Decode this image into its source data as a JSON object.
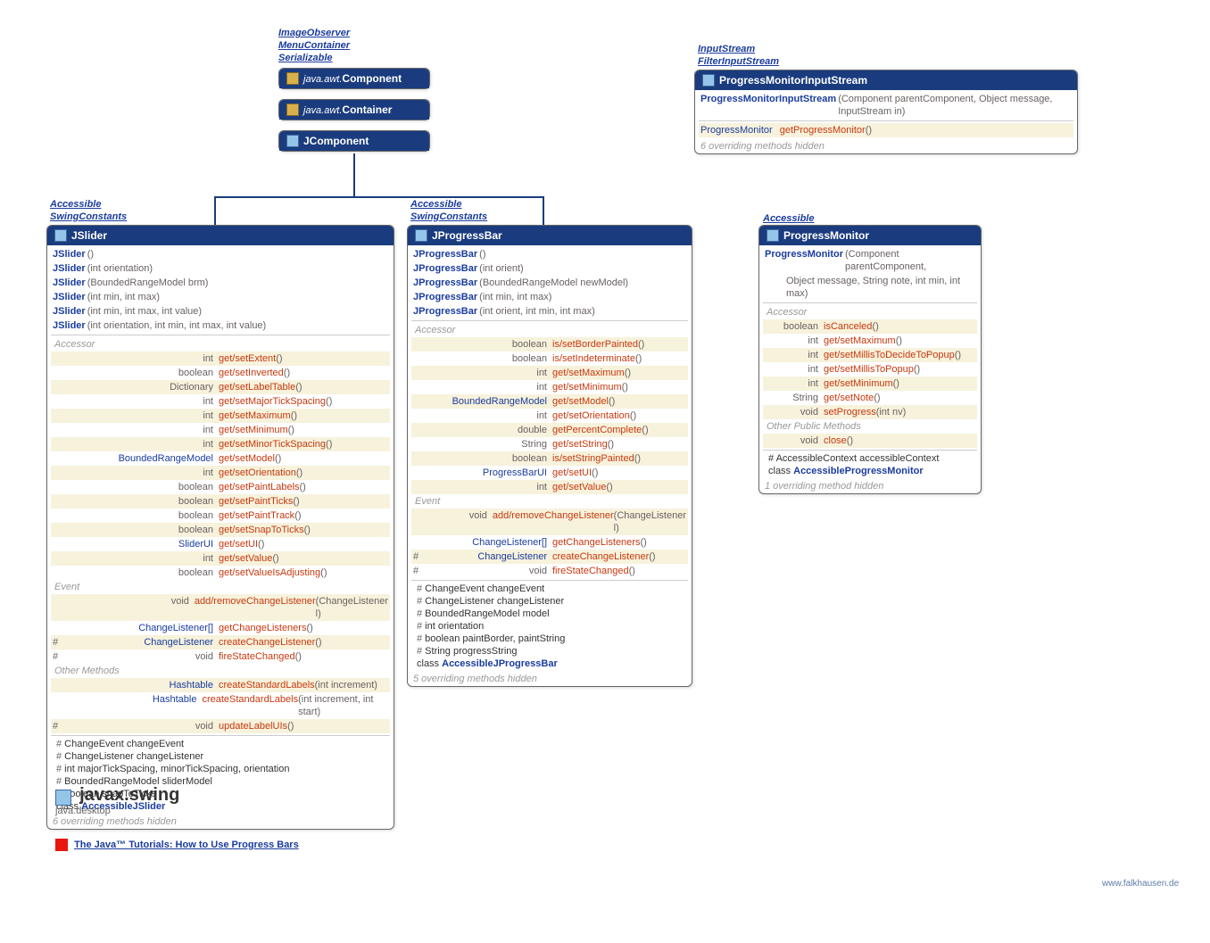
{
  "colors": {
    "header_bg": "#1a3c7e",
    "method": "#c8380e",
    "type": "#1a3c9e",
    "param": "#6a6262",
    "shade": "#f7f2dc"
  },
  "top_interfaces": [
    "ImageObserver",
    "MenuContainer",
    "Serializable"
  ],
  "hierarchy": [
    {
      "pkg": "java.awt.",
      "name": "Component"
    },
    {
      "pkg": "java.awt.",
      "name": "Container"
    },
    {
      "pkg": "",
      "name": "JComponent"
    }
  ],
  "jslider": {
    "interfaces": [
      "Accessible",
      "SwingConstants"
    ],
    "title": "JSlider",
    "ctors": [
      {
        "name": "JSlider",
        "params": "()"
      },
      {
        "name": "JSlider",
        "params": "(int orientation)"
      },
      {
        "name": "JSlider",
        "params": "(BoundedRangeModel brm)"
      },
      {
        "name": "JSlider",
        "params": "(int min, int max)"
      },
      {
        "name": "JSlider",
        "params": "(int min, int max, int value)"
      },
      {
        "name": "JSlider",
        "params": "(int orientation, int min, int max, int value)"
      }
    ],
    "accessor_label": "Accessor",
    "accessors": [
      {
        "ret": "int",
        "name": "get/setExtent",
        "p": "()"
      },
      {
        "ret": "boolean",
        "name": "get/setInverted",
        "p": "()"
      },
      {
        "ret": "Dictionary",
        "name": "get/setLabelTable",
        "p": "()"
      },
      {
        "ret": "int",
        "name": "get/setMajorTickSpacing",
        "p": "()"
      },
      {
        "ret": "int",
        "name": "get/setMaximum",
        "p": "()"
      },
      {
        "ret": "int",
        "name": "get/setMinimum",
        "p": "()"
      },
      {
        "ret": "int",
        "name": "get/setMinorTickSpacing",
        "p": "()"
      },
      {
        "ret": "BoundedRangeModel",
        "name": "get/setModel",
        "p": "()",
        "retblue": true
      },
      {
        "ret": "int",
        "name": "get/setOrientation",
        "p": "()"
      },
      {
        "ret": "boolean",
        "name": "get/setPaintLabels",
        "p": "()"
      },
      {
        "ret": "boolean",
        "name": "get/setPaintTicks",
        "p": "()"
      },
      {
        "ret": "boolean",
        "name": "get/setPaintTrack",
        "p": "()"
      },
      {
        "ret": "boolean",
        "name": "get/setSnapToTicks",
        "p": "()"
      },
      {
        "ret": "SliderUI",
        "name": "get/setUI",
        "p": "()",
        "retblue": true
      },
      {
        "ret": "int",
        "name": "get/setValue",
        "p": "()"
      },
      {
        "ret": "boolean",
        "name": "get/setValueIsAdjusting",
        "p": "()"
      }
    ],
    "event_label": "Event",
    "events": [
      {
        "mod": "",
        "ret": "void",
        "name": "add/removeChangeListener",
        "p": "(ChangeListener l)"
      },
      {
        "mod": "",
        "ret": "ChangeListener[]",
        "name": "getChangeListeners",
        "p": "()",
        "retblue": true
      },
      {
        "mod": "#",
        "ret": "ChangeListener",
        "name": "createChangeListener",
        "p": "()",
        "retblue": true
      },
      {
        "mod": "#",
        "ret": "void",
        "name": "fireStateChanged",
        "p": "()"
      }
    ],
    "other_label": "Other Methods",
    "others": [
      {
        "mod": "",
        "ret": "Hashtable<Integer, JComponent>",
        "name": "createStandardLabels",
        "p": "(int increment)",
        "retblue": true
      },
      {
        "mod": "",
        "ret": "Hashtable<Integer, JComponent>",
        "name": "createStandardLabels",
        "p": "(int increment, int start)",
        "retblue": true
      },
      {
        "mod": "#",
        "ret": "void",
        "name": "updateLabelUIs",
        "p": "()"
      }
    ],
    "fields": [
      "# ChangeEvent changeEvent",
      "# ChangeListener changeListener",
      "# int majorTickSpacing, minorTickSpacing, orientation",
      "# BoundedRangeModel sliderModel",
      "# boolean snapToTicks"
    ],
    "inner": "class AccessibleJSlider",
    "footer": "6 overriding methods hidden"
  },
  "jprogressbar": {
    "interfaces": [
      "Accessible",
      "SwingConstants"
    ],
    "title": "JProgressBar",
    "ctors": [
      {
        "name": "JProgressBar",
        "params": "()"
      },
      {
        "name": "JProgressBar",
        "params": "(int orient)"
      },
      {
        "name": "JProgressBar",
        "params": "(BoundedRangeModel newModel)"
      },
      {
        "name": "JProgressBar",
        "params": "(int min, int max)"
      },
      {
        "name": "JProgressBar",
        "params": "(int orient, int min, int max)"
      }
    ],
    "accessor_label": "Accessor",
    "accessors": [
      {
        "ret": "boolean",
        "name": "is/setBorderPainted",
        "p": "()"
      },
      {
        "ret": "boolean",
        "name": "is/setIndeterminate",
        "p": "()"
      },
      {
        "ret": "int",
        "name": "get/setMaximum",
        "p": "()"
      },
      {
        "ret": "int",
        "name": "get/setMinimum",
        "p": "()"
      },
      {
        "ret": "BoundedRangeModel",
        "name": "get/setModel",
        "p": "()",
        "retblue": true
      },
      {
        "ret": "int",
        "name": "get/setOrientation",
        "p": "()"
      },
      {
        "ret": "double",
        "name": "getPercentComplete",
        "p": "()"
      },
      {
        "ret": "String",
        "name": "get/setString",
        "p": "()"
      },
      {
        "ret": "boolean",
        "name": "is/setStringPainted",
        "p": "()"
      },
      {
        "ret": "ProgressBarUI",
        "name": "get/setUI",
        "p": "()",
        "retblue": true
      },
      {
        "ret": "int",
        "name": "get/setValue",
        "p": "()"
      }
    ],
    "event_label": "Event",
    "events": [
      {
        "mod": "",
        "ret": "void",
        "name": "add/removeChangeListener",
        "p": "(ChangeListener l)"
      },
      {
        "mod": "",
        "ret": "ChangeListener[]",
        "name": "getChangeListeners",
        "p": "()",
        "retblue": true
      },
      {
        "mod": "#",
        "ret": "ChangeListener",
        "name": "createChangeListener",
        "p": "()",
        "retblue": true
      },
      {
        "mod": "#",
        "ret": "void",
        "name": "fireStateChanged",
        "p": "()"
      }
    ],
    "fields": [
      "# ChangeEvent changeEvent",
      "# ChangeListener changeListener",
      "# BoundedRangeModel model",
      "# int orientation",
      "# boolean paintBorder, paintString",
      "# String progressString"
    ],
    "inner": "class AccessibleJProgressBar",
    "footer": "5 overriding methods hidden"
  },
  "progressmonitor": {
    "interfaces": [
      "Accessible"
    ],
    "title": "ProgressMonitor",
    "ctor_name": "ProgressMonitor",
    "ctor_line1": "(Component parentComponent,",
    "ctor_line2": "Object message, String note, int min, int max)",
    "accessor_label": "Accessor",
    "accessors": [
      {
        "ret": "boolean",
        "name": "isCanceled",
        "p": "()"
      },
      {
        "ret": "int",
        "name": "get/setMaximum",
        "p": "()"
      },
      {
        "ret": "int",
        "name": "get/setMillisToDecideToPopup",
        "p": "()"
      },
      {
        "ret": "int",
        "name": "get/setMillisToPopup",
        "p": "()"
      },
      {
        "ret": "int",
        "name": "get/setMinimum",
        "p": "()"
      },
      {
        "ret": "String",
        "name": "get/setNote",
        "p": "()"
      },
      {
        "ret": "void",
        "name": "setProgress",
        "p": "(int nv)"
      }
    ],
    "other_label": "Other Public Methods",
    "others": [
      {
        "ret": "void",
        "name": "close",
        "p": "()"
      }
    ],
    "field": "# AccessibleContext accessibleContext",
    "inner": "class AccessibleProgressMonitor",
    "footer": "1 overriding method hidden"
  },
  "pmis": {
    "interfaces": [
      "InputStream",
      "FilterInputStream"
    ],
    "title": "ProgressMonitorInputStream",
    "ctor_name": "ProgressMonitorInputStream",
    "ctor_params": "(Component parentComponent, Object message, InputStream in)",
    "method_ret": "ProgressMonitor",
    "method_name": "getProgressMonitor",
    "method_p": "()",
    "footer": "6 overriding methods hidden"
  },
  "package": {
    "name": "javax.swing",
    "module": "java.desktop"
  },
  "tutorial": "The Java™ Tutorials: How to Use Progress Bars",
  "attrib": "www.falkhausen.de"
}
